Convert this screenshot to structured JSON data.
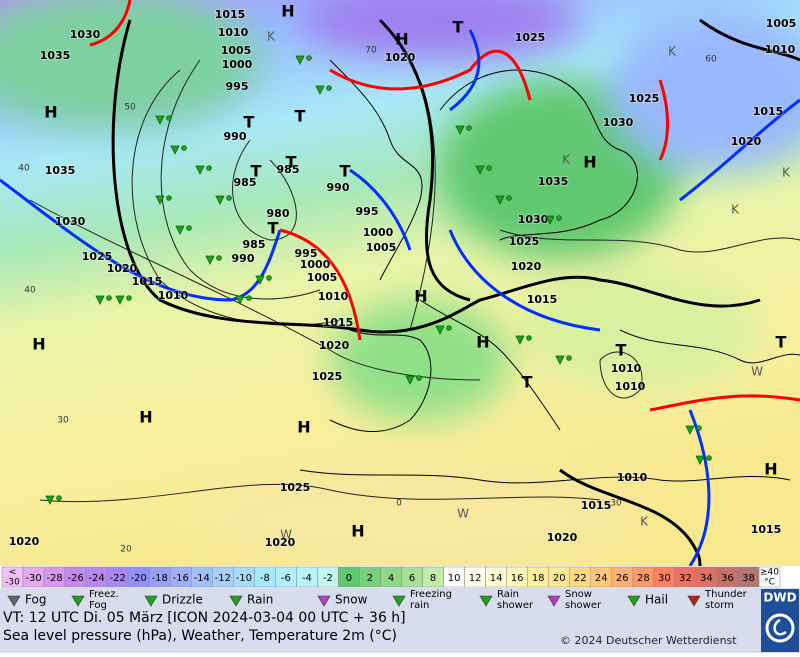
{
  "map": {
    "isobar_labels": [
      "1015",
      "1010",
      "1005",
      "1000",
      "995",
      "990",
      "985",
      "985",
      "980",
      "985",
      "990",
      "995",
      "1000",
      "1005",
      "1010",
      "1015",
      "1020",
      "1025",
      "1030",
      "1035",
      "1035",
      "1030",
      "1025",
      "1020",
      "1015",
      "1010",
      "990",
      "995",
      "1000",
      "1005",
      "1020",
      "1025",
      "1030",
      "1025",
      "1035",
      "1030",
      "1025",
      "1020",
      "1015",
      "1020",
      "1015",
      "1010",
      "1005",
      "1010",
      "1010",
      "1010",
      "1015",
      "1015",
      "1020",
      "1020",
      "1020",
      "1025"
    ],
    "centers": [
      "H",
      "H",
      "T",
      "T",
      "T",
      "T",
      "T",
      "T",
      "H",
      "T",
      "H",
      "H",
      "H",
      "T",
      "T",
      "T",
      "H",
      "H",
      "H",
      "H",
      "H",
      "W",
      "W",
      "K",
      "K",
      "K",
      "K",
      "W",
      "K",
      "K"
    ],
    "grid_labels": [
      "50",
      "40",
      "40",
      "30",
      "20",
      "60",
      "70",
      "0",
      "30"
    ]
  },
  "color_scale": {
    "low_end": [
      "<",
      "-30"
    ],
    "steps": [
      {
        "label": "-30",
        "color": "#e8a8f0"
      },
      {
        "label": "-28",
        "color": "#d898f0"
      },
      {
        "label": "-26",
        "color": "#c888f0"
      },
      {
        "label": "-24",
        "color": "#b888f0"
      },
      {
        "label": "-22",
        "color": "#a888f8"
      },
      {
        "label": "-20",
        "color": "#9090ff"
      },
      {
        "label": "-18",
        "color": "#98a0ff"
      },
      {
        "label": "-16",
        "color": "#a0b0ff"
      },
      {
        "label": "-14",
        "color": "#a0c0ff"
      },
      {
        "label": "-12",
        "color": "#a8d0ff"
      },
      {
        "label": "-10",
        "color": "#a8dcff"
      },
      {
        "label": "-8",
        "color": "#a8e8ff"
      },
      {
        "label": "-6",
        "color": "#b0f0ff"
      },
      {
        "label": "-4",
        "color": "#b8f4f8"
      },
      {
        "label": "-2",
        "color": "#c0f8f0"
      },
      {
        "label": "0",
        "color": "#60c870"
      },
      {
        "label": "2",
        "color": "#78d078"
      },
      {
        "label": "4",
        "color": "#90d888"
      },
      {
        "label": "6",
        "color": "#a8e098"
      },
      {
        "label": "8",
        "color": "#c0eca8"
      },
      {
        "label": "10",
        "color": "#ffffff"
      },
      {
        "label": "12",
        "color": "#fffff0"
      },
      {
        "label": "14",
        "color": "#fffcd0"
      },
      {
        "label": "16",
        "color": "#fff8b8"
      },
      {
        "label": "18",
        "color": "#fff0a0"
      },
      {
        "label": "20",
        "color": "#ffe890"
      },
      {
        "label": "22",
        "color": "#ffd880"
      },
      {
        "label": "24",
        "color": "#ffc878"
      },
      {
        "label": "26",
        "color": "#ffb070"
      },
      {
        "label": "28",
        "color": "#ff9868"
      },
      {
        "label": "30",
        "color": "#ff8060"
      },
      {
        "label": "32",
        "color": "#f07060"
      },
      {
        "label": "34",
        "color": "#e07060"
      },
      {
        "label": "36",
        "color": "#c87068"
      },
      {
        "label": "38",
        "color": "#b07870"
      }
    ],
    "high_end": [
      "≥40",
      "°C"
    ]
  },
  "legend": [
    {
      "label": "Fog"
    },
    {
      "label": "Freez. Fog"
    },
    {
      "label": "Drizzle"
    },
    {
      "label": "Rain"
    },
    {
      "label": "Snow"
    },
    {
      "label": "Freezing rain"
    },
    {
      "label": "Rain shower"
    },
    {
      "label": "Snow shower"
    },
    {
      "label": "Hail"
    },
    {
      "label": "Thunder storm"
    }
  ],
  "footer": {
    "valid_time": "VT: 12 UTC Di.  05 März [ICON 2024-03-04  00 UTC + 36 h]",
    "description": "Sea level pressure (hPa), Weather, Temperature 2m (°C)",
    "copyright": "© 2024 Deutscher Wetterdienst",
    "logo": "DWD"
  }
}
